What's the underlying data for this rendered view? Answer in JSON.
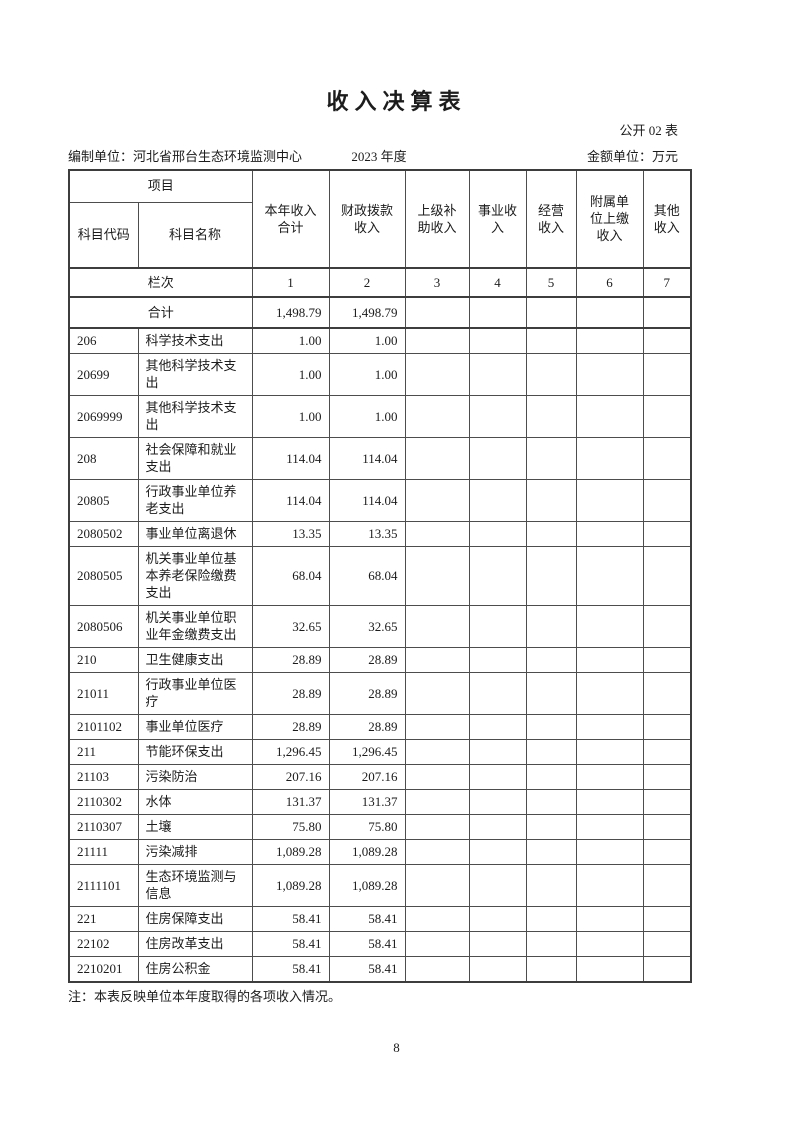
{
  "page": {
    "title": "收入决算表",
    "table_code": "公开 02 表",
    "prepared_by": "编制单位：河北省邢台生态环境监测中心",
    "year": "2023 年度",
    "unit": "金额单位：万元",
    "note": "注：本表反映单位本年度取得的各项收入情况。",
    "page_number": "8"
  },
  "table": {
    "header": {
      "item_group": "项目",
      "code": "科目代码",
      "name": "科目名称",
      "columns": [
        "本年收入\n合计",
        "财政拨款\n收入",
        "上级补\n助收入",
        "事业收\n入",
        "经营\n收入",
        "附属单\n位上缴\n收入",
        "其他\n收入"
      ]
    },
    "lanci": {
      "label": "栏次",
      "numbers": [
        "1",
        "2",
        "3",
        "4",
        "5",
        "6",
        "7"
      ]
    },
    "total_row": {
      "label": "合计",
      "values": [
        "1,498.79",
        "1,498.79",
        "",
        "",
        "",
        "",
        ""
      ]
    },
    "rows": [
      {
        "code": "206",
        "name": "科学技术支出",
        "values": [
          "1.00",
          "1.00",
          "",
          "",
          "",
          "",
          ""
        ]
      },
      {
        "code": "20699",
        "name": "其他科学技术支出",
        "values": [
          "1.00",
          "1.00",
          "",
          "",
          "",
          "",
          ""
        ]
      },
      {
        "code": "2069999",
        "name": "其他科学技术支出",
        "values": [
          "1.00",
          "1.00",
          "",
          "",
          "",
          "",
          ""
        ]
      },
      {
        "code": "208",
        "name": "社会保障和就业支出",
        "values": [
          "114.04",
          "114.04",
          "",
          "",
          "",
          "",
          ""
        ]
      },
      {
        "code": "20805",
        "name": "行政事业单位养老支出",
        "values": [
          "114.04",
          "114.04",
          "",
          "",
          "",
          "",
          ""
        ]
      },
      {
        "code": "2080502",
        "name": "事业单位离退休",
        "values": [
          "13.35",
          "13.35",
          "",
          "",
          "",
          "",
          ""
        ]
      },
      {
        "code": "2080505",
        "name": "机关事业单位基本养老保险缴费支出",
        "values": [
          "68.04",
          "68.04",
          "",
          "",
          "",
          "",
          ""
        ]
      },
      {
        "code": "2080506",
        "name": "机关事业单位职业年金缴费支出",
        "values": [
          "32.65",
          "32.65",
          "",
          "",
          "",
          "",
          ""
        ]
      },
      {
        "code": "210",
        "name": "卫生健康支出",
        "values": [
          "28.89",
          "28.89",
          "",
          "",
          "",
          "",
          ""
        ]
      },
      {
        "code": "21011",
        "name": "行政事业单位医疗",
        "values": [
          "28.89",
          "28.89",
          "",
          "",
          "",
          "",
          ""
        ]
      },
      {
        "code": "2101102",
        "name": "事业单位医疗",
        "values": [
          "28.89",
          "28.89",
          "",
          "",
          "",
          "",
          ""
        ]
      },
      {
        "code": "211",
        "name": "节能环保支出",
        "values": [
          "1,296.45",
          "1,296.45",
          "",
          "",
          "",
          "",
          ""
        ]
      },
      {
        "code": "21103",
        "name": "污染防治",
        "values": [
          "207.16",
          "207.16",
          "",
          "",
          "",
          "",
          ""
        ]
      },
      {
        "code": "2110302",
        "name": "水体",
        "values": [
          "131.37",
          "131.37",
          "",
          "",
          "",
          "",
          ""
        ]
      },
      {
        "code": "2110307",
        "name": "土壤",
        "values": [
          "75.80",
          "75.80",
          "",
          "",
          "",
          "",
          ""
        ]
      },
      {
        "code": "21111",
        "name": "污染减排",
        "values": [
          "1,089.28",
          "1,089.28",
          "",
          "",
          "",
          "",
          ""
        ]
      },
      {
        "code": "2111101",
        "name": "生态环境监测与信息",
        "values": [
          "1,089.28",
          "1,089.28",
          "",
          "",
          "",
          "",
          ""
        ]
      },
      {
        "code": "221",
        "name": "住房保障支出",
        "values": [
          "58.41",
          "58.41",
          "",
          "",
          "",
          "",
          ""
        ]
      },
      {
        "code": "22102",
        "name": "住房改革支出",
        "values": [
          "58.41",
          "58.41",
          "",
          "",
          "",
          "",
          ""
        ]
      },
      {
        "code": "2210201",
        "name": "住房公积金",
        "values": [
          "58.41",
          "58.41",
          "",
          "",
          "",
          "",
          ""
        ]
      }
    ]
  }
}
